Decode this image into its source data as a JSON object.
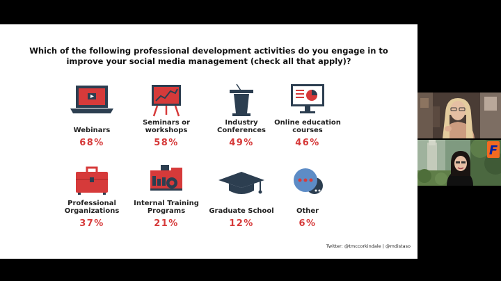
{
  "slide": {
    "question": "Which of the following professional development activities do you engage in to improve your social media management (check all that apply)?",
    "items": [
      {
        "label": "Webinars",
        "percent": "68%",
        "icon": "laptop-icon"
      },
      {
        "label": "Seminars or workshops",
        "percent": "58%",
        "icon": "presentation-board-icon"
      },
      {
        "label": "Industry Conferences",
        "percent": "49%",
        "icon": "podium-icon"
      },
      {
        "label": "Online education courses",
        "percent": "46%",
        "icon": "monitor-chart-icon"
      },
      {
        "label": "Professional Organizations",
        "percent": "37%",
        "icon": "briefcase-icon"
      },
      {
        "label": "Internal Training Programs",
        "percent": "21%",
        "icon": "factory-gear-icon"
      },
      {
        "label": "Graduate School",
        "percent": "12%",
        "icon": "graduation-cap-icon"
      },
      {
        "label": "Other",
        "percent": "6%",
        "icon": "chat-bubbles-icon"
      }
    ],
    "footer": "Twitter: @tmccorkindale | @mdistaso"
  },
  "participants": [
    {
      "name": "participant-video-1"
    },
    {
      "name": "participant-video-2"
    }
  ],
  "colors": {
    "accent": "#d63a3a",
    "navy": "#2c3e50",
    "orange": "#f26a21",
    "blue": "#0021a5"
  }
}
